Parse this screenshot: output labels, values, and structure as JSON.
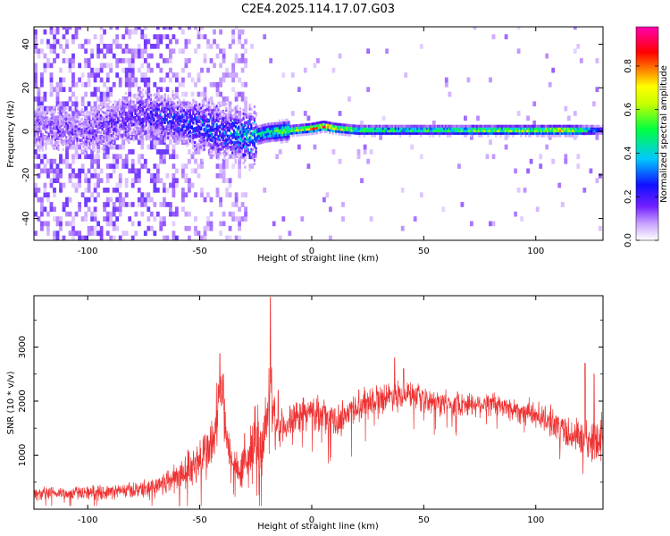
{
  "title": "C2E4.2025.114.17.07.G03",
  "chart_data": [
    {
      "type": "heatmap",
      "xlabel": "Height of straight line (km)",
      "ylabel": "Frequency (Hz)",
      "xlim": [
        -124,
        130
      ],
      "ylim": [
        -50,
        48
      ],
      "x_ticks": [
        "-100",
        "-50",
        "0",
        "50",
        "100"
      ],
      "x_tick_values": [
        -100,
        -50,
        0,
        50,
        100
      ],
      "y_ticks": [
        "40",
        "20",
        "0",
        "-20",
        "-40"
      ],
      "y_tick_values": [
        40,
        20,
        0,
        -20,
        -40
      ],
      "colorbar": {
        "label": "Normalized spectral amplitude",
        "ticks": [
          "0.0",
          "0.2",
          "0.4",
          "0.6",
          "0.8"
        ],
        "tick_values": [
          0.0,
          0.2,
          0.4,
          0.6,
          0.8
        ],
        "range": [
          0,
          0.98
        ],
        "colors": [
          "#ffffff",
          "#b070ff",
          "#2020ff",
          "#00ccff",
          "#00ff60",
          "#ffff00",
          "#ff8000",
          "#ff0000",
          "#ff00aa"
        ]
      },
      "ridge": {
        "x": [
          -124,
          -100,
          -75,
          -65,
          -55,
          -45,
          -38,
          -32,
          -28,
          -20,
          -10,
          0,
          5,
          10,
          20,
          40,
          60,
          80,
          100,
          115,
          130
        ],
        "y": [
          1,
          0,
          8,
          6,
          3,
          1,
          -1,
          -2,
          -3,
          -1,
          0,
          1,
          2,
          1,
          0,
          0,
          0,
          0,
          0,
          0,
          0
        ],
        "amplitude": [
          0.15,
          0.15,
          0.2,
          0.25,
          0.3,
          0.3,
          0.3,
          0.35,
          0.4,
          0.45,
          0.6,
          0.8,
          0.85,
          0.75,
          0.55,
          0.5,
          0.55,
          0.6,
          0.65,
          0.75,
          0.2
        ]
      }
    },
    {
      "type": "line",
      "xlabel": "Height of straight line (km)",
      "ylabel": "SNR (10 * v/v)",
      "xlim": [
        -124,
        130
      ],
      "ylim": [
        0,
        3950
      ],
      "x_ticks": [
        "-100",
        "-50",
        "0",
        "50",
        "100"
      ],
      "x_tick_values": [
        -100,
        -50,
        0,
        50,
        100
      ],
      "y_ticks": [
        "1000",
        "2000",
        "3000"
      ],
      "y_tick_values": [
        1000,
        2000,
        3000
      ],
      "color": "#ee3333",
      "envelope": {
        "x": [
          -124,
          -110,
          -90,
          -75,
          -65,
          -58,
          -52,
          -48,
          -44,
          -42,
          -40,
          -38,
          -36,
          -32,
          -30,
          -28,
          -25,
          -22,
          -20,
          -18,
          -16,
          -14,
          -10,
          -5,
          0,
          5,
          10,
          15,
          20,
          25,
          30,
          35,
          40,
          45,
          50,
          60,
          70,
          80,
          90,
          100,
          105,
          110,
          115,
          120,
          125,
          130
        ],
        "y": [
          280,
          300,
          320,
          380,
          500,
          650,
          850,
          1000,
          1200,
          1800,
          2200,
          1200,
          900,
          700,
          800,
          900,
          1500,
          1000,
          1800,
          2200,
          1400,
          1500,
          1600,
          1750,
          1800,
          1750,
          1600,
          1750,
          1900,
          2000,
          2050,
          2100,
          2150,
          2100,
          2000,
          1950,
          1950,
          1950,
          1850,
          1750,
          1650,
          1550,
          1400,
          1300,
          1250,
          1400
        ],
        "spread": [
          150,
          150,
          160,
          200,
          300,
          400,
          500,
          600,
          700,
          900,
          700,
          600,
          500,
          500,
          600,
          700,
          800,
          800,
          700,
          600,
          500,
          400,
          380,
          380,
          380,
          380,
          380,
          380,
          380,
          360,
          340,
          320,
          300,
          300,
          300,
          280,
          280,
          280,
          280,
          300,
          320,
          350,
          400,
          450,
          500,
          550
        ]
      },
      "spikes": {
        "x": [
          -41,
          -39.5,
          -18.5,
          -15,
          -30,
          37,
          41,
          122,
          126
        ],
        "y": [
          2880,
          2500,
          3920,
          2200,
          1400,
          2800,
          2600,
          2700,
          2500
        ]
      }
    }
  ]
}
